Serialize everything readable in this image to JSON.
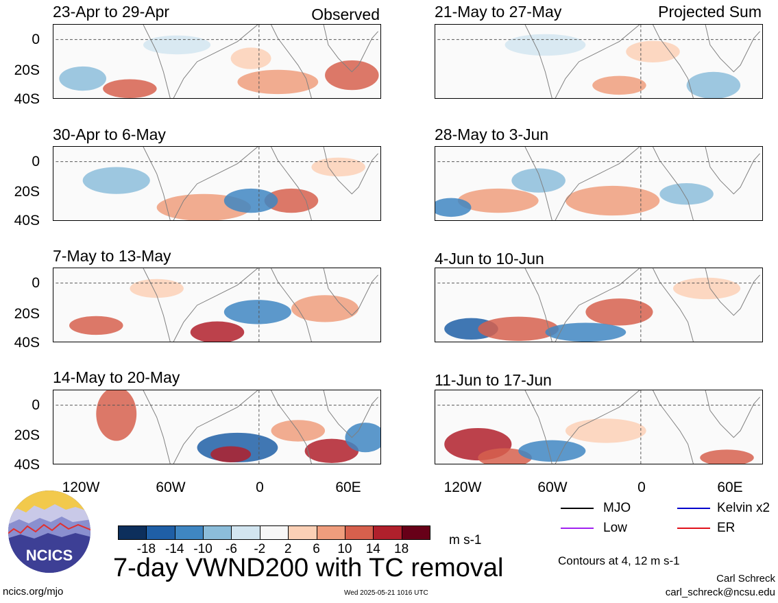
{
  "left_column_label": "Observed",
  "right_column_label": "Projected Sum",
  "panels": [
    {
      "title": "23-Apr to 29-Apr"
    },
    {
      "title": "30-Apr to 6-May"
    },
    {
      "title": "7-May to 13-May"
    },
    {
      "title": "14-May to 20-May"
    },
    {
      "title": "21-May to 27-May"
    },
    {
      "title": "28-May to 3-Jun"
    },
    {
      "title": "4-Jun to 10-Jun"
    },
    {
      "title": "11-Jun to 17-Jun"
    }
  ],
  "y_ticks": [
    "0",
    "20S",
    "40S"
  ],
  "x_ticks": [
    "120W",
    "60W",
    "0",
    "60E"
  ],
  "colorbar": {
    "unit": "m s-1",
    "labels": [
      "-18",
      "-14",
      "-10",
      "-6",
      "-2",
      "2",
      "6",
      "10",
      "14",
      "18"
    ],
    "colors": [
      "#0d2f5c",
      "#1f5fa6",
      "#3f86c2",
      "#8cbdda",
      "#d2e5f0",
      "#f7f7f7",
      "#fbd0b6",
      "#ef9d7d",
      "#d6604d",
      "#b0202c",
      "#670018"
    ]
  },
  "legend": {
    "items": [
      {
        "label": "MJO",
        "color": "#000000"
      },
      {
        "label": "Kelvin x2",
        "color": "#0000cc"
      },
      {
        "label": "Low",
        "color": "#a020f0"
      },
      {
        "label": "ER",
        "color": "#e0101a"
      }
    ],
    "contours_note": "Contours at 4, 12 m s-1"
  },
  "main_title": "7-day VWND200 with TC removal",
  "logo_text": "NCICS",
  "footer": {
    "website": "ncics.org/mjo",
    "timestamp": "Wed 2025-05-21 1016 UTC",
    "author": "Carl Schreck",
    "email": "carl_schreck@ncsu.edu"
  }
}
